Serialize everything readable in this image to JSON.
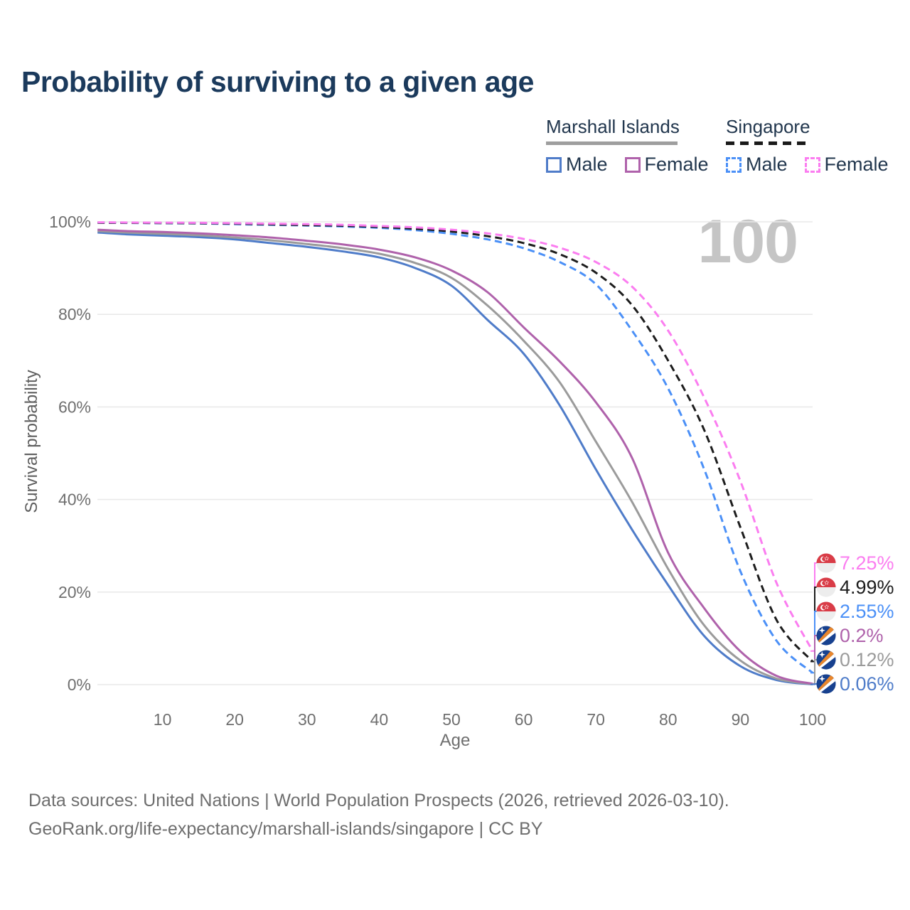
{
  "title": "Probability of surviving to a given age",
  "watermark": "100",
  "legend": {
    "groups": [
      {
        "title": "Marshall Islands",
        "line_style": "solid",
        "items": [
          {
            "label": "Male",
            "series": "mi_male"
          },
          {
            "label": "Female",
            "series": "mi_female"
          }
        ]
      },
      {
        "title": "Singapore",
        "line_style": "dashed",
        "items": [
          {
            "label": "Male",
            "series": "sg_male"
          },
          {
            "label": "Female",
            "series": "sg_female"
          }
        ]
      }
    ]
  },
  "chart_data": {
    "type": "line",
    "title": "Probability of surviving to a given age",
    "xlabel": "Age",
    "ylabel": "Survival probability",
    "x_axis": {
      "label": "Age",
      "min": 1,
      "max": 100,
      "ticks": [
        10,
        20,
        30,
        40,
        50,
        60,
        70,
        80,
        90,
        100
      ]
    },
    "y_axis": {
      "label": "Survival probability",
      "min": 0,
      "max": 100,
      "ticks": [
        {
          "label": "0%",
          "value": 0
        },
        {
          "label": "20%",
          "value": 20
        },
        {
          "label": "40%",
          "value": 40
        },
        {
          "label": "60%",
          "value": 60
        },
        {
          "label": "80%",
          "value": 80
        },
        {
          "label": "100%",
          "value": 100
        }
      ]
    },
    "grid": "horizontal-only",
    "legend_position": "top-right",
    "ages": [
      1,
      5,
      10,
      15,
      20,
      25,
      30,
      35,
      40,
      45,
      50,
      55,
      60,
      65,
      70,
      75,
      80,
      85,
      90,
      95,
      100
    ],
    "series": [
      {
        "id": "mi_male",
        "name": "Marshall Islands Male",
        "country": "Marshall Islands",
        "sex": "Male",
        "color": "#4f7cc9",
        "dashed": false,
        "flag": "marshall-islands",
        "end_label": "0.06%",
        "end_value": 0.06,
        "values": [
          97.7,
          97.3,
          97.0,
          96.7,
          96.2,
          95.4,
          94.6,
          93.6,
          92.3,
          90.0,
          86.2,
          78.8,
          71.5,
          60.3,
          46.5,
          33.5,
          21.5,
          10.5,
          4.0,
          1.0,
          0.06
        ]
      },
      {
        "id": "mi_both",
        "name": "Marshall Islands Both sexes",
        "country": "Marshall Islands",
        "sex": "Both",
        "color": "#9b9b9b",
        "dashed": false,
        "flag": "marshall-islands",
        "end_label": "0.12%",
        "end_value": 0.12,
        "values": [
          98.0,
          97.7,
          97.4,
          97.1,
          96.6,
          96.0,
          95.2,
          94.3,
          93.1,
          91.1,
          87.9,
          81.9,
          74.3,
          65.3,
          52.5,
          39.5,
          25.0,
          12.8,
          5.2,
          1.3,
          0.12
        ]
      },
      {
        "id": "mi_female",
        "name": "Marshall Islands Female",
        "country": "Marshall Islands",
        "sex": "Female",
        "color": "#af62ab",
        "dashed": false,
        "flag": "marshall-islands",
        "end_label": "0.2%",
        "end_value": 0.2,
        "values": [
          98.3,
          98.0,
          97.8,
          97.5,
          97.1,
          96.6,
          95.9,
          95.1,
          94.0,
          92.3,
          89.5,
          84.8,
          77.2,
          69.8,
          61.0,
          49.0,
          28.5,
          16.5,
          7.2,
          1.9,
          0.2
        ]
      },
      {
        "id": "sg_male",
        "name": "Singapore Male",
        "country": "Singapore",
        "sex": "Male",
        "color": "#4b90f7",
        "dashed": true,
        "flag": "singapore",
        "end_label": "2.55%",
        "end_value": 2.55,
        "values": [
          99.8,
          99.75,
          99.7,
          99.65,
          99.5,
          99.35,
          99.2,
          99.0,
          98.7,
          98.2,
          97.4,
          96.2,
          94.3,
          91.3,
          86.5,
          76.5,
          64.0,
          46.5,
          24.5,
          9.5,
          2.55
        ]
      },
      {
        "id": "sg_both",
        "name": "Singapore Both sexes",
        "country": "Singapore",
        "sex": "Both",
        "color": "#1d1d1d",
        "dashed": true,
        "flag": "singapore",
        "end_label": "4.99%",
        "end_value": 4.99,
        "values": [
          99.8,
          99.78,
          99.74,
          99.7,
          99.6,
          99.45,
          99.3,
          99.15,
          98.9,
          98.5,
          97.9,
          96.9,
          95.4,
          93.0,
          89.0,
          82.0,
          70.0,
          55.0,
          34.0,
          14.0,
          4.99
        ]
      },
      {
        "id": "sg_female",
        "name": "Singapore Female",
        "country": "Singapore",
        "sex": "Female",
        "color": "#fb7df0",
        "dashed": true,
        "flag": "singapore",
        "end_label": "7.25%",
        "end_value": 7.25,
        "values": [
          99.9,
          99.85,
          99.82,
          99.78,
          99.7,
          99.6,
          99.5,
          99.35,
          99.1,
          98.8,
          98.3,
          97.5,
          96.3,
          94.4,
          91.3,
          86.0,
          76.5,
          62.0,
          44.0,
          22.0,
          7.25
        ]
      }
    ]
  },
  "colors": {
    "title": "#1b3a5c",
    "grid": "#e9e9e9",
    "axis_text": "#6f6f6f",
    "watermark": "#c5c5c5",
    "footer_text": "#6e6e6e",
    "sg_flag_red": "#d93c47",
    "mh_flag_blue": "#17418f",
    "mh_flag_orange": "#e8862c"
  },
  "footer": {
    "line1": "Data sources: United Nations | World Population Prospects (2026, retrieved 2026-03-10).",
    "line2": "GeoRank.org/life-expectancy/marshall-islands/singapore | CC BY"
  }
}
